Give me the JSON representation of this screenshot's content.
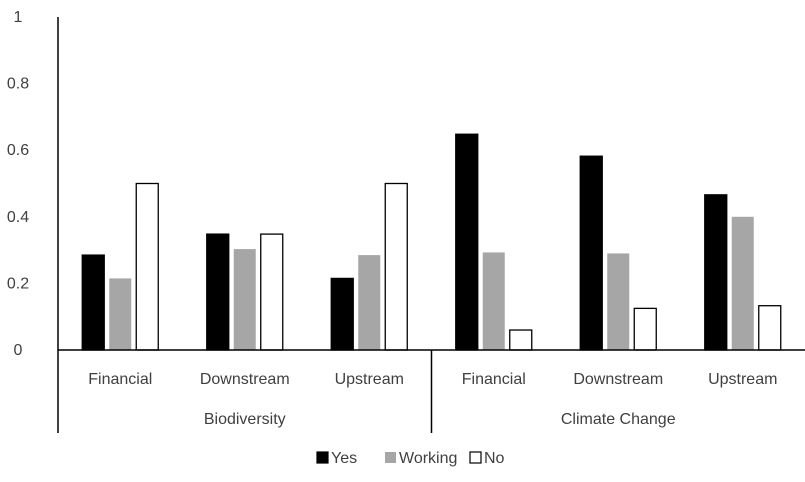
{
  "chart_data": {
    "type": "bar",
    "groups": [
      {
        "name": "Biodiversity",
        "categories": [
          "Financial",
          "Downstream",
          "Upstream"
        ]
      },
      {
        "name": "Climate Change",
        "categories": [
          "Financial",
          "Downstream",
          "Upstream"
        ]
      }
    ],
    "series": [
      {
        "name": "Yes",
        "color": "#000000",
        "values": [
          0.285,
          0.348,
          0.215,
          0.648,
          0.582,
          0.466
        ]
      },
      {
        "name": "Working",
        "color": "#a6a6a6",
        "values": [
          0.215,
          0.303,
          0.285,
          0.293,
          0.29,
          0.4
        ]
      },
      {
        "name": "No",
        "color": "#ffffff",
        "values": [
          0.5,
          0.348,
          0.5,
          0.06,
          0.125,
          0.133
        ]
      }
    ],
    "y_ticks": [
      "0",
      "0.2",
      "0.4",
      "0.6",
      "0.8",
      "1"
    ],
    "ylim": [
      0,
      1
    ],
    "grid": false,
    "legend": "bottom"
  }
}
